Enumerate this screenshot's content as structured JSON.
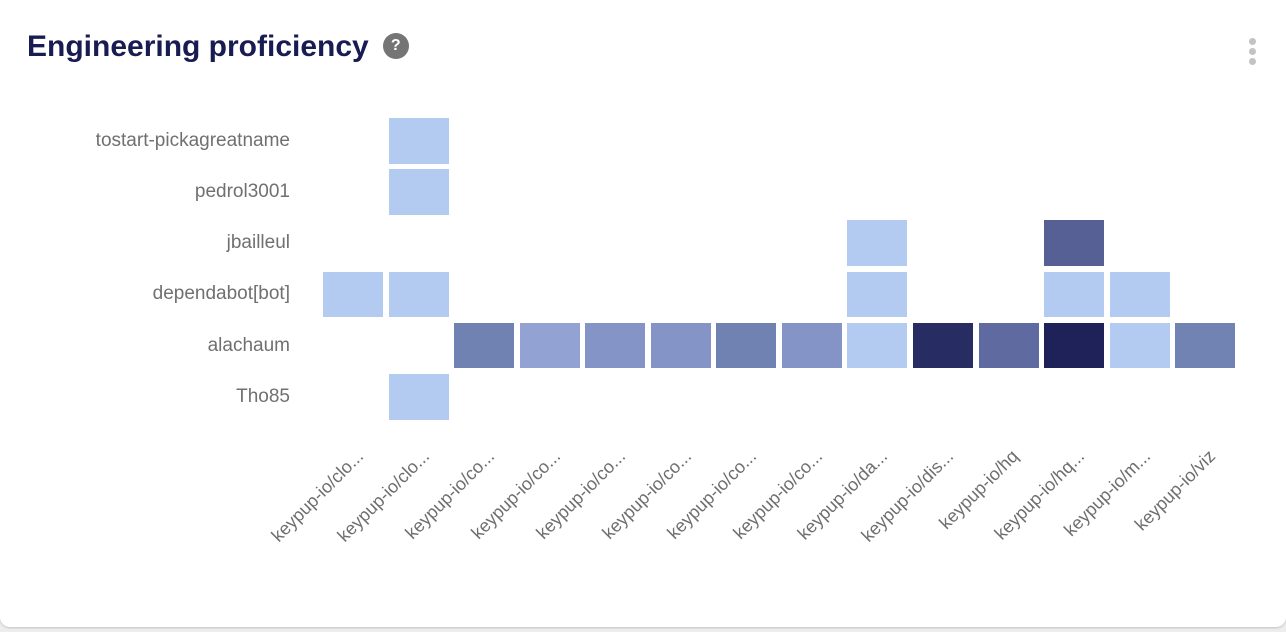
{
  "card": {
    "title": "Engineering proficiency",
    "help_label": "?"
  },
  "chart_data": {
    "type": "heatmap",
    "title": "Engineering proficiency",
    "legend_position": "none",
    "grid": "off",
    "rows": [
      "tostart-pickagreatname",
      "pedrol3001",
      "jbailleul",
      "dependabot[bot]",
      "alachaum",
      "Tho85"
    ],
    "columns": [
      "keypup-io/clo...",
      "keypup-io/clo...",
      "keypup-io/co...",
      "keypup-io/co...",
      "keypup-io/co...",
      "keypup-io/co...",
      "keypup-io/co...",
      "keypup-io/co...",
      "keypup-io/da...",
      "keypup-io/dis...",
      "keypup-io/hq",
      "keypup-io/hq...",
      "keypup-io/m...",
      "keypup-io/viz"
    ],
    "palette": {
      "lowest": "#B3CAF1",
      "low": "#92A2D2",
      "medium": "#8494C6",
      "medium_high": "#7082B2",
      "high": "#5E6AA0",
      "very_high": "#272C63",
      "highest": "#1F2259"
    },
    "cells": [
      {
        "row": 0,
        "col": 1,
        "color": "#B3CAF1",
        "intensity": "lowest"
      },
      {
        "row": 1,
        "col": 1,
        "color": "#B3CAF1",
        "intensity": "lowest"
      },
      {
        "row": 2,
        "col": 8,
        "color": "#B3CAF1",
        "intensity": "lowest"
      },
      {
        "row": 2,
        "col": 11,
        "color": "#566094",
        "intensity": "high"
      },
      {
        "row": 3,
        "col": 0,
        "color": "#B3CAF1",
        "intensity": "lowest"
      },
      {
        "row": 3,
        "col": 1,
        "color": "#B3CAF1",
        "intensity": "lowest"
      },
      {
        "row": 3,
        "col": 8,
        "color": "#B3CAF1",
        "intensity": "lowest"
      },
      {
        "row": 3,
        "col": 11,
        "color": "#B3CAF1",
        "intensity": "lowest"
      },
      {
        "row": 3,
        "col": 12,
        "color": "#B3CAF1",
        "intensity": "lowest"
      },
      {
        "row": 4,
        "col": 2,
        "color": "#7082B2",
        "intensity": "medium_high"
      },
      {
        "row": 4,
        "col": 3,
        "color": "#92A2D2",
        "intensity": "low"
      },
      {
        "row": 4,
        "col": 4,
        "color": "#8494C6",
        "intensity": "medium"
      },
      {
        "row": 4,
        "col": 5,
        "color": "#8494C6",
        "intensity": "medium"
      },
      {
        "row": 4,
        "col": 6,
        "color": "#7082B2",
        "intensity": "medium_high"
      },
      {
        "row": 4,
        "col": 7,
        "color": "#8494C6",
        "intensity": "medium"
      },
      {
        "row": 4,
        "col": 8,
        "color": "#B3CAF1",
        "intensity": "lowest"
      },
      {
        "row": 4,
        "col": 9,
        "color": "#272C63",
        "intensity": "very_high"
      },
      {
        "row": 4,
        "col": 10,
        "color": "#5E6AA0",
        "intensity": "high"
      },
      {
        "row": 4,
        "col": 11,
        "color": "#1F2259",
        "intensity": "highest"
      },
      {
        "row": 4,
        "col": 12,
        "color": "#B3CAF1",
        "intensity": "lowest"
      },
      {
        "row": 4,
        "col": 13,
        "color": "#7183B3",
        "intensity": "medium_high"
      },
      {
        "row": 5,
        "col": 1,
        "color": "#B3CAF1",
        "intensity": "lowest"
      }
    ]
  }
}
